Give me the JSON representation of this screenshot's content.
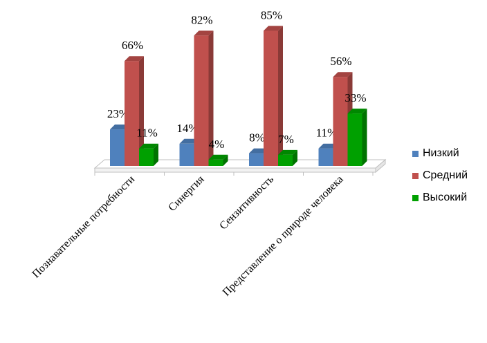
{
  "chart_data": {
    "type": "bar",
    "title": "",
    "xlabel": "",
    "ylabel": "",
    "ylim": [
      0,
      100
    ],
    "grid": false,
    "legend_position": "right",
    "categories": [
      "Познавательные потребности",
      "Синергия",
      "Сензитивность",
      "Представление о природе человека"
    ],
    "series": [
      {
        "name": "Низкий",
        "values": [
          23,
          14,
          8,
          11
        ],
        "labels": [
          "23%",
          "14%",
          "8%",
          "11%"
        ],
        "color": "#4F81BD"
      },
      {
        "name": "Средний",
        "values": [
          66,
          82,
          85,
          56
        ],
        "labels": [
          "66%",
          "82%",
          "85%",
          "56%"
        ],
        "color": "#C0504D"
      },
      {
        "name": "Высокий",
        "values": [
          11,
          4,
          7,
          33
        ],
        "labels": [
          "11%",
          "4%",
          "7%",
          "33%"
        ],
        "color": "#00A000"
      }
    ]
  }
}
